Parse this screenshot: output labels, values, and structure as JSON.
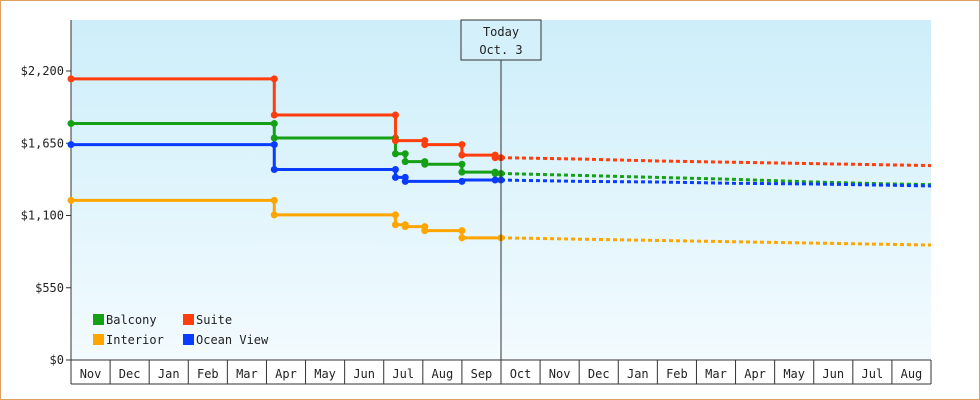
{
  "chart_data": {
    "type": "line",
    "title": "",
    "xlabel": "",
    "ylabel": "",
    "y_ticks": [
      "$0",
      "$550",
      "$1,100",
      "$1,650",
      "$2,200"
    ],
    "ylim": [
      0,
      2200
    ],
    "months": [
      "Nov",
      "Dec",
      "Jan",
      "Feb",
      "Mar",
      "Apr",
      "May",
      "Jun",
      "Jul",
      "Aug",
      "Sep",
      "Oct",
      "Nov",
      "Dec",
      "Jan",
      "Feb",
      "Mar",
      "Apr",
      "May",
      "Jun",
      "Jul",
      "Aug"
    ],
    "today": {
      "line1": "Today",
      "line2": "Oct. 3",
      "x": 11.0
    },
    "grid": false,
    "legend_position": "bottom-left",
    "colors": {
      "Balcony": "#15a015",
      "Suite": "#ff3d0d",
      "Interior": "#ffa500",
      "Ocean View": "#0a3cff",
      "plot_top": "#cdeefa",
      "plot_bottom": "#f3fbfe"
    },
    "series": [
      {
        "name": "Balcony",
        "color": "#15a015",
        "history": [
          [
            0,
            1800
          ],
          [
            5.2,
            1800
          ],
          [
            5.2,
            1690
          ],
          [
            8.3,
            1690
          ],
          [
            8.3,
            1570
          ],
          [
            8.55,
            1570
          ],
          [
            8.55,
            1510
          ],
          [
            9.05,
            1510
          ],
          [
            9.05,
            1490
          ],
          [
            10.0,
            1490
          ],
          [
            10.0,
            1430
          ],
          [
            10.85,
            1430
          ],
          [
            10.85,
            1420
          ],
          [
            11.0,
            1420
          ]
        ],
        "forecast": [
          [
            11.0,
            1420
          ],
          [
            13,
            1405
          ],
          [
            15,
            1390
          ],
          [
            17,
            1375
          ],
          [
            19,
            1355
          ],
          [
            21,
            1340
          ],
          [
            22,
            1335
          ]
        ]
      },
      {
        "name": "Suite",
        "color": "#ff3d0d",
        "history": [
          [
            0,
            2140
          ],
          [
            5.2,
            2140
          ],
          [
            5.2,
            1865
          ],
          [
            8.3,
            1865
          ],
          [
            8.3,
            1670
          ],
          [
            9.05,
            1670
          ],
          [
            9.05,
            1640
          ],
          [
            10.0,
            1640
          ],
          [
            10.0,
            1560
          ],
          [
            10.85,
            1560
          ],
          [
            10.85,
            1540
          ],
          [
            11.0,
            1540
          ]
        ],
        "forecast": [
          [
            11.0,
            1540
          ],
          [
            13,
            1530
          ],
          [
            15,
            1515
          ],
          [
            17,
            1505
          ],
          [
            19,
            1495
          ],
          [
            21,
            1485
          ],
          [
            22,
            1480
          ]
        ]
      },
      {
        "name": "Interior",
        "color": "#ffa500",
        "history": [
          [
            0,
            1215
          ],
          [
            5.2,
            1215
          ],
          [
            5.2,
            1105
          ],
          [
            8.3,
            1105
          ],
          [
            8.3,
            1030
          ],
          [
            8.55,
            1030
          ],
          [
            8.55,
            1015
          ],
          [
            9.05,
            1015
          ],
          [
            9.05,
            985
          ],
          [
            10.0,
            985
          ],
          [
            10.0,
            930
          ],
          [
            11.0,
            930
          ]
        ],
        "forecast": [
          [
            11.0,
            930
          ],
          [
            13,
            920
          ],
          [
            15,
            910
          ],
          [
            17,
            900
          ],
          [
            19,
            890
          ],
          [
            21,
            880
          ],
          [
            22,
            875
          ]
        ]
      },
      {
        "name": "Ocean View",
        "color": "#0a3cff",
        "history": [
          [
            0,
            1640
          ],
          [
            5.2,
            1640
          ],
          [
            5.2,
            1450
          ],
          [
            8.3,
            1450
          ],
          [
            8.3,
            1390
          ],
          [
            8.55,
            1390
          ],
          [
            8.55,
            1360
          ],
          [
            10.0,
            1360
          ],
          [
            10.0,
            1370
          ],
          [
            10.85,
            1370
          ],
          [
            10.85,
            1370
          ],
          [
            11.0,
            1370
          ]
        ],
        "forecast": [
          [
            11.0,
            1370
          ],
          [
            13,
            1360
          ],
          [
            15,
            1355
          ],
          [
            17,
            1345
          ],
          [
            19,
            1340
          ],
          [
            21,
            1330
          ],
          [
            22,
            1325
          ]
        ]
      }
    ],
    "markers": {
      "Balcony": [
        [
          0,
          1800
        ],
        [
          5.2,
          1800
        ],
        [
          5.2,
          1690
        ],
        [
          8.3,
          1690
        ],
        [
          8.3,
          1570
        ],
        [
          8.55,
          1570
        ],
        [
          8.55,
          1510
        ],
        [
          9.05,
          1510
        ],
        [
          9.05,
          1490
        ],
        [
          10.0,
          1490
        ],
        [
          10.0,
          1430
        ],
        [
          10.85,
          1430
        ],
        [
          10.85,
          1420
        ],
        [
          11.0,
          1420
        ]
      ],
      "Suite": [
        [
          0,
          2140
        ],
        [
          5.2,
          2140
        ],
        [
          5.2,
          1865
        ],
        [
          8.3,
          1865
        ],
        [
          8.3,
          1670
        ],
        [
          9.05,
          1670
        ],
        [
          9.05,
          1640
        ],
        [
          10.0,
          1640
        ],
        [
          10.0,
          1560
        ],
        [
          10.85,
          1560
        ],
        [
          10.85,
          1540
        ],
        [
          11.0,
          1540
        ]
      ],
      "Interior": [
        [
          0,
          1215
        ],
        [
          5.2,
          1215
        ],
        [
          5.2,
          1105
        ],
        [
          8.3,
          1105
        ],
        [
          8.3,
          1030
        ],
        [
          8.55,
          1030
        ],
        [
          8.55,
          1015
        ],
        [
          9.05,
          1015
        ],
        [
          9.05,
          985
        ],
        [
          10.0,
          985
        ],
        [
          10.0,
          930
        ],
        [
          11.0,
          930
        ]
      ],
      "Ocean View": [
        [
          0,
          1640
        ],
        [
          5.2,
          1640
        ],
        [
          5.2,
          1450
        ],
        [
          8.3,
          1450
        ],
        [
          8.3,
          1390
        ],
        [
          8.55,
          1390
        ],
        [
          8.55,
          1360
        ],
        [
          10.0,
          1360
        ],
        [
          10.85,
          1370
        ],
        [
          11.0,
          1370
        ]
      ]
    },
    "legend": [
      {
        "name": "Balcony",
        "color": "#15a015"
      },
      {
        "name": "Suite",
        "color": "#ff3d0d"
      },
      {
        "name": "Interior",
        "color": "#ffa500"
      },
      {
        "name": "Ocean View",
        "color": "#0a3cff"
      }
    ]
  }
}
